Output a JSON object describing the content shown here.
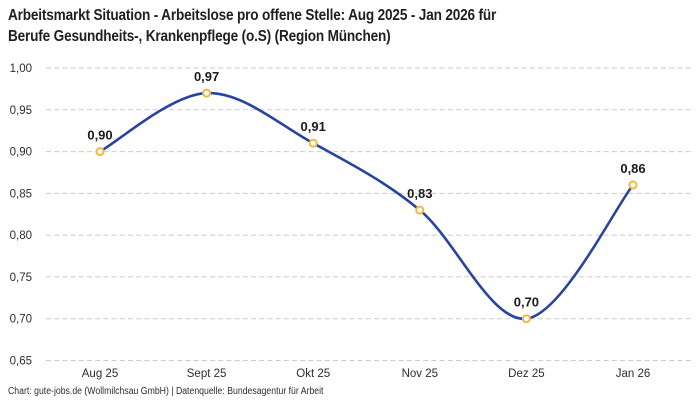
{
  "header": {
    "title_line1": "Arbeitsmarkt Situation - Arbeitslose pro offene Stelle: Aug 2025 - Jan 2026 für",
    "title_line2": "Berufe Gesundheits-, Krankenpflege (o.S) (Region München)"
  },
  "footer": {
    "credit": "Chart: gute-jobs.de (Wollmilchsau GmbH) | Datenquelle: Bundesagentur für Arbeit"
  },
  "chart_data": {
    "type": "line",
    "title": "Arbeitsmarkt Situation - Arbeitslose pro offene Stelle: Aug 2025 - Jan 2026 für Berufe Gesundheits-, Krankenpflege (o.S) (Region München)",
    "categories": [
      "Aug 25",
      "Sept 25",
      "Okt 25",
      "Nov 25",
      "Dez 25",
      "Jan 26"
    ],
    "values": [
      0.9,
      0.97,
      0.91,
      0.83,
      0.7,
      0.86
    ],
    "point_labels": [
      "0,90",
      "0,97",
      "0,91",
      "0,83",
      "0,70",
      "0,86"
    ],
    "xlabel": "",
    "ylabel": "",
    "ylim": [
      0.65,
      1.0
    ],
    "ytick_step": 0.05,
    "ytick_labels": [
      "0,65",
      "0,70",
      "0,75",
      "0,80",
      "0,85",
      "0,90",
      "0,95",
      "1,00"
    ],
    "grid": "horizontal-dashed",
    "legend_position": "none",
    "smooth": true,
    "colors": {
      "line": "#2444A8",
      "marker_stroke": "#F6B83A",
      "marker_fill": "#FFFFFF",
      "grid": "#CBCBCB",
      "point_label_text": "#1A1A1A",
      "tick_text": "#2D2D2D",
      "title_text": "#1F1F1F"
    }
  }
}
